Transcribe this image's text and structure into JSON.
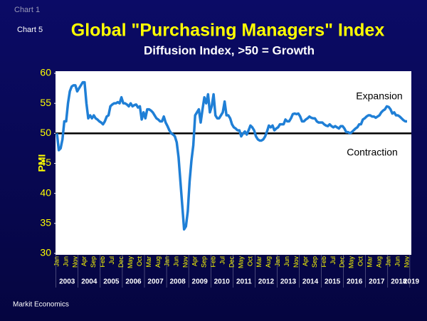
{
  "chart_data": {
    "type": "line",
    "header_labels": [
      "Chart 1",
      "Chart 5"
    ],
    "title": "Global \"Purchasing Managers\" Index",
    "subtitle": "Diffusion Index, >50 = Growth",
    "y_label": "PMI",
    "source": "Markit Economics",
    "annotations": [
      "Expansion",
      "Contraction"
    ],
    "reference_line": 50,
    "color": "#1f7fd6",
    "ylim": [
      30,
      60
    ],
    "yticks": [
      30,
      35,
      40,
      45,
      50,
      55,
      60
    ],
    "grid": false,
    "years": [
      "2003",
      "2004",
      "2005",
      "2006",
      "2007",
      "2008",
      "2009",
      "2010",
      "2011",
      "2012",
      "2013",
      "2014",
      "2015",
      "2016",
      "2017",
      "2018",
      "2019"
    ],
    "categories": [
      "Jan",
      null,
      null,
      null,
      null,
      "Jun",
      null,
      null,
      null,
      null,
      "Nov",
      null,
      null,
      null,
      null,
      "Apr",
      null,
      null,
      null,
      null,
      "Sep",
      null,
      null,
      null,
      null,
      "Feb",
      null,
      null,
      null,
      null,
      "Jul",
      null,
      null,
      null,
      null,
      "Dec",
      null,
      null,
      null,
      null,
      "May",
      null,
      null,
      null,
      null,
      "Oct",
      null,
      null,
      null,
      null,
      "Mar",
      null,
      null,
      null,
      null,
      "Aug",
      null,
      null,
      null,
      null,
      "Jan",
      null,
      null,
      null,
      null,
      "Jun",
      null,
      null,
      null,
      null,
      "Nov",
      null,
      null,
      null,
      null,
      "Apr",
      null,
      null,
      null,
      null,
      "Sep",
      null,
      null,
      null,
      null,
      "Feb",
      null,
      null,
      null,
      null,
      "Jul",
      null,
      null,
      null,
      null,
      "Dec",
      null,
      null,
      null,
      null,
      "May",
      null,
      null,
      null,
      null,
      "Oct",
      null,
      null,
      null,
      null,
      "Mar",
      null,
      null,
      null,
      null,
      "Aug",
      null,
      null,
      null,
      null,
      "Jan",
      null,
      null,
      null,
      null,
      "Jun",
      null,
      null,
      null,
      null,
      "Nov",
      null,
      null,
      null,
      null,
      "Apr",
      null,
      null,
      null,
      null,
      "Sep",
      null,
      null,
      null,
      null,
      "Feb",
      null,
      null,
      null,
      null,
      "Jul",
      null,
      null,
      null,
      null,
      "Dec",
      null,
      null,
      null,
      null,
      "May",
      null,
      null,
      null,
      null,
      "Oct",
      null,
      null,
      null,
      null,
      "Mar",
      null,
      null,
      null,
      null,
      "Aug",
      null,
      null,
      null,
      null,
      "Jan",
      null,
      null,
      null,
      null,
      "Jun",
      null,
      null,
      null,
      null,
      "Nov"
    ],
    "values": [
      50,
      47.2,
      47.5,
      49,
      52,
      52,
      55,
      57,
      57.8,
      58,
      58,
      57,
      57.5,
      58,
      58.5,
      58.5,
      55,
      52.5,
      53,
      52.5,
      53,
      52.5,
      52.3,
      52,
      51.8,
      51.5,
      52,
      52.8,
      53,
      54.5,
      54.8,
      55,
      55,
      55.2,
      55,
      56,
      55,
      55,
      54.8,
      54.5,
      55,
      54.5,
      54.7,
      54.8,
      54.3,
      54.5,
      52.3,
      53.5,
      52.5,
      54,
      54,
      53.8,
      53.5,
      53,
      52.5,
      52.3,
      52,
      52,
      52.8,
      51.8,
      51.2,
      50.5,
      50,
      49.8,
      49.5,
      48.5,
      46,
      42,
      38,
      34,
      34.5,
      37,
      42,
      45.5,
      48,
      53,
      53.5,
      54,
      51.8,
      54,
      56,
      55,
      56.5,
      53.5,
      54.5,
      56.5,
      53,
      52.5,
      52.5,
      53,
      53.5,
      55.3,
      53,
      53,
      52.5,
      51.5,
      51,
      50.8,
      50.5,
      50.5,
      49.5,
      50,
      50.3,
      49.8,
      50.5,
      51.3,
      51,
      50.5,
      49.5,
      49,
      48.8,
      48.8,
      49,
      49.5,
      50.3,
      51.3,
      51,
      51.3,
      50.5,
      50.8,
      51,
      51.5,
      51.5,
      51.5,
      52.3,
      52,
      52,
      52.5,
      53.2,
      53.3,
      53.2,
      53.3,
      52.8,
      52,
      52,
      52.3,
      52.5,
      52.8,
      52.6,
      52.5,
      52.5,
      52,
      51.8,
      51.8,
      51.8,
      51.5,
      51.3,
      51.2,
      51.5,
      51.2,
      51,
      51.2,
      51,
      50.8,
      51.2,
      51.2,
      50.8,
      50.2,
      50.2,
      50,
      50.2,
      50.5,
      50.8,
      51,
      51.5,
      51.5,
      52.3,
      52.5,
      52.8,
      53,
      53,
      52.8,
      52.8,
      52.6,
      52.8,
      53,
      53.5,
      53.8,
      54,
      54.5,
      54.4,
      54,
      53.3,
      53.5,
      53,
      53,
      52.8,
      52.5,
      52.2,
      52,
      52
    ]
  }
}
